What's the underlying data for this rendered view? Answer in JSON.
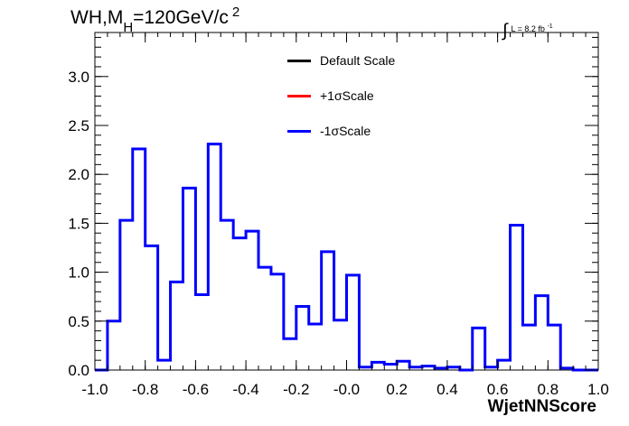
{
  "title": {
    "main": "WH,M",
    "sub": "H",
    "rest": "=120GeV/c",
    "sup": "2"
  },
  "luminosity": {
    "symbol": "∫",
    "text": "L = 8.2 fb",
    "sup": "-1"
  },
  "legend": [
    {
      "label": "Default Scale",
      "color": "#000000"
    },
    {
      "label": "+1σScale",
      "color": "#ff0000"
    },
    {
      "label": "-1σScale",
      "color": "#0000ff"
    }
  ],
  "chart_data": {
    "type": "histogram",
    "xlabel": "WjetNNScore",
    "ylabel": "",
    "xlim": [
      -1.0,
      1.0
    ],
    "ylim": [
      0,
      3.45
    ],
    "x_ticks": [
      "-1.0",
      "-0.8",
      "-0.6",
      "-0.4",
      "-0.2",
      "-0.0",
      "0.2",
      "0.4",
      "0.6",
      "0.8",
      "1.0"
    ],
    "y_ticks": [
      "0.0",
      "0.5",
      "1.0",
      "1.5",
      "2.0",
      "2.5",
      "3.0"
    ],
    "bin_edges_start": -1.0,
    "bin_width": 0.05,
    "series": [
      {
        "name": "-1σScale",
        "color": "#0000ff",
        "values": [
          0.0,
          0.5,
          1.53,
          2.26,
          1.27,
          0.1,
          0.9,
          1.86,
          0.77,
          2.31,
          1.53,
          1.35,
          1.42,
          1.05,
          0.98,
          0.32,
          0.65,
          0.47,
          1.21,
          0.51,
          0.97,
          0.03,
          0.08,
          0.06,
          0.09,
          0.03,
          0.04,
          0.02,
          0.03,
          0.0,
          0.43,
          0.03,
          0.1,
          1.48,
          0.46,
          0.76,
          0.46,
          0.02,
          0.0,
          0.0
        ]
      }
    ]
  }
}
